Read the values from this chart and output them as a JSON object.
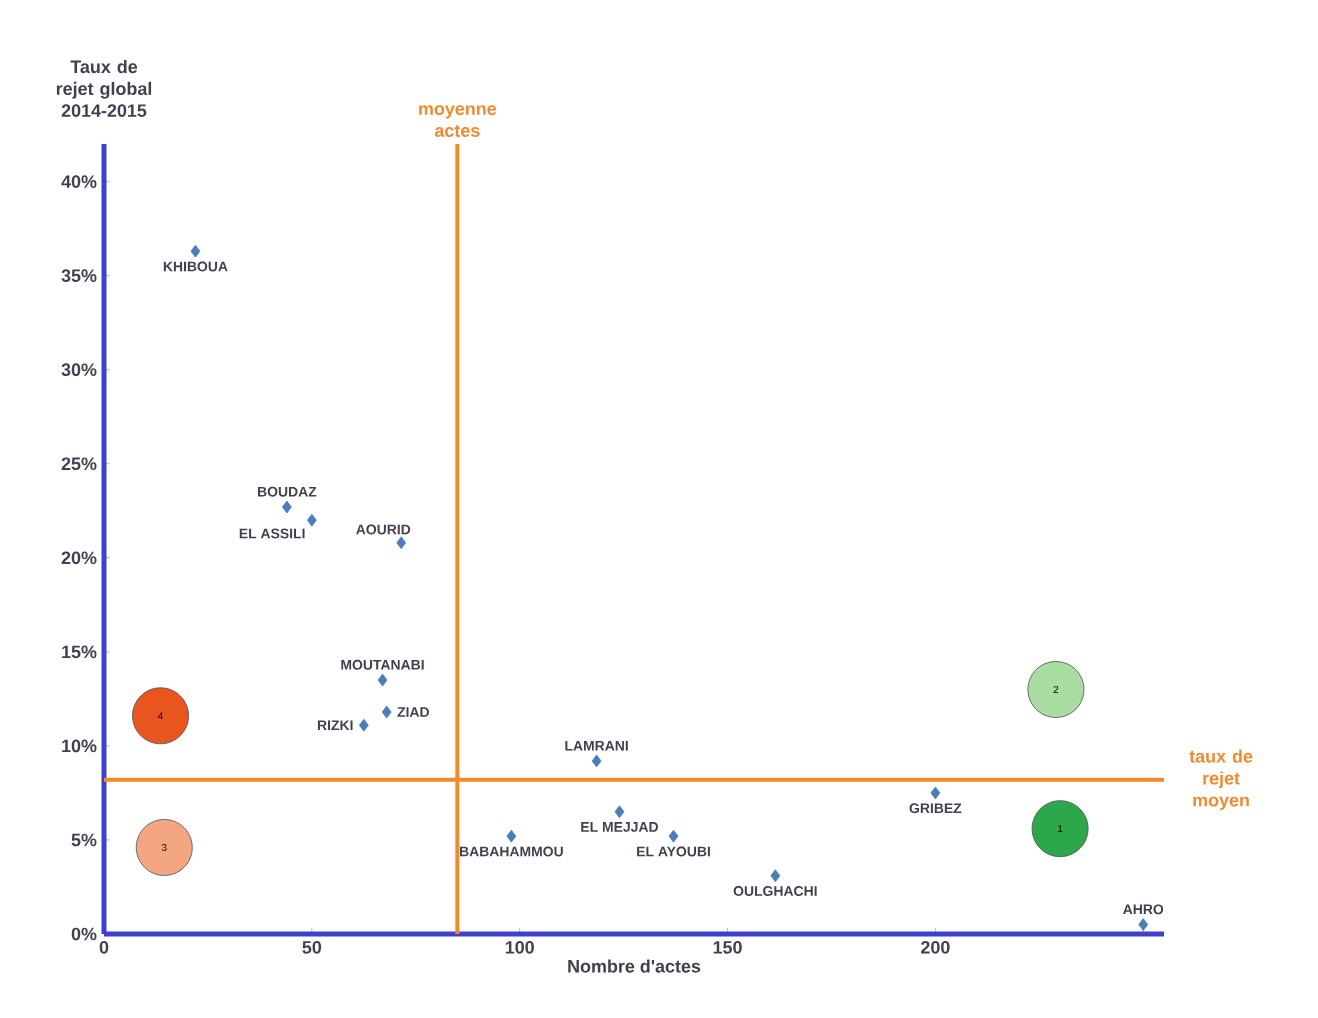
{
  "chart_data": {
    "type": "scatter",
    "xlabel": "Nombre d'actes",
    "ylabel": "Taux de rejet global 2014-2015",
    "xlim": [
      0,
      255
    ],
    "ylim": [
      0,
      42
    ],
    "xticks": [
      0,
      50,
      100,
      150,
      200,
      {
        "value": 250,
        "label": null
      }
    ],
    "yticks": [
      {
        "value": 0,
        "label": "0%"
      },
      {
        "value": 5,
        "label": "5%"
      },
      {
        "value": 10,
        "label": "10%"
      },
      {
        "value": 15,
        "label": "15%"
      },
      {
        "value": 20,
        "label": "20%"
      },
      {
        "value": 25,
        "label": "25%"
      },
      {
        "value": 30,
        "label": "30%"
      },
      {
        "value": 35,
        "label": "35%"
      },
      {
        "value": 40,
        "label": "40%"
      }
    ],
    "marker": "diamond",
    "grid": false,
    "series": [
      {
        "color": "#4a7ebb",
        "x": [
          22,
          44,
          50,
          71.5,
          67,
          68,
          62.5,
          118.5,
          98,
          124,
          137,
          161.5,
          200,
          250
        ],
        "values": [
          36.3,
          22.7,
          22.0,
          20.8,
          13.5,
          11.8,
          11.1,
          9.2,
          5.2,
          6.5,
          5.2,
          3.1,
          7.5,
          0.5
        ]
      }
    ],
    "ref_lines": [
      {
        "axis": "x",
        "value": 85,
        "label": "moyenne actes",
        "color": "#f08a2c"
      },
      {
        "axis": "y",
        "value": 8.2,
        "label": "taux de rejet moyen",
        "color": "#f08a2c"
      }
    ],
    "annotations": [
      {
        "text": "KHIBOUA",
        "x": 22,
        "y": 36.3
      },
      {
        "text": "BOUDAZ",
        "x": 44,
        "y": 22.7
      },
      {
        "text": "EL ASSILI",
        "x": 50,
        "y": 22.0
      },
      {
        "text": "AOURID",
        "x": 71.5,
        "y": 20.8
      },
      {
        "text": "MOUTANABI",
        "x": 67,
        "y": 13.5
      },
      {
        "text": "ZIAD",
        "x": 68,
        "y": 11.8
      },
      {
        "text": "RIZKI",
        "x": 62.5,
        "y": 11.1
      },
      {
        "text": "LAMRANI",
        "x": 118.5,
        "y": 9.2
      },
      {
        "text": "BABAHAMMOU",
        "x": 98,
        "y": 5.2
      },
      {
        "text": "EL MEJJAD",
        "x": 124,
        "y": 6.5
      },
      {
        "text": "EL AYOUBI",
        "x": 137,
        "y": 5.2
      },
      {
        "text": "OULGHACHI",
        "x": 161.5,
        "y": 3.1
      },
      {
        "text": "GRIBEZ",
        "x": 200,
        "y": 7.5
      },
      {
        "text": "AHRO",
        "x": 250,
        "y": 0.5
      },
      {
        "text": "4",
        "x": 13.6,
        "y": 11.6
      },
      {
        "text": "3",
        "x": 14.5,
        "y": 4.6
      },
      {
        "text": "2",
        "x": 229,
        "y": 13
      },
      {
        "text": "1",
        "x": 230,
        "y": 5.6
      }
    ]
  }
}
